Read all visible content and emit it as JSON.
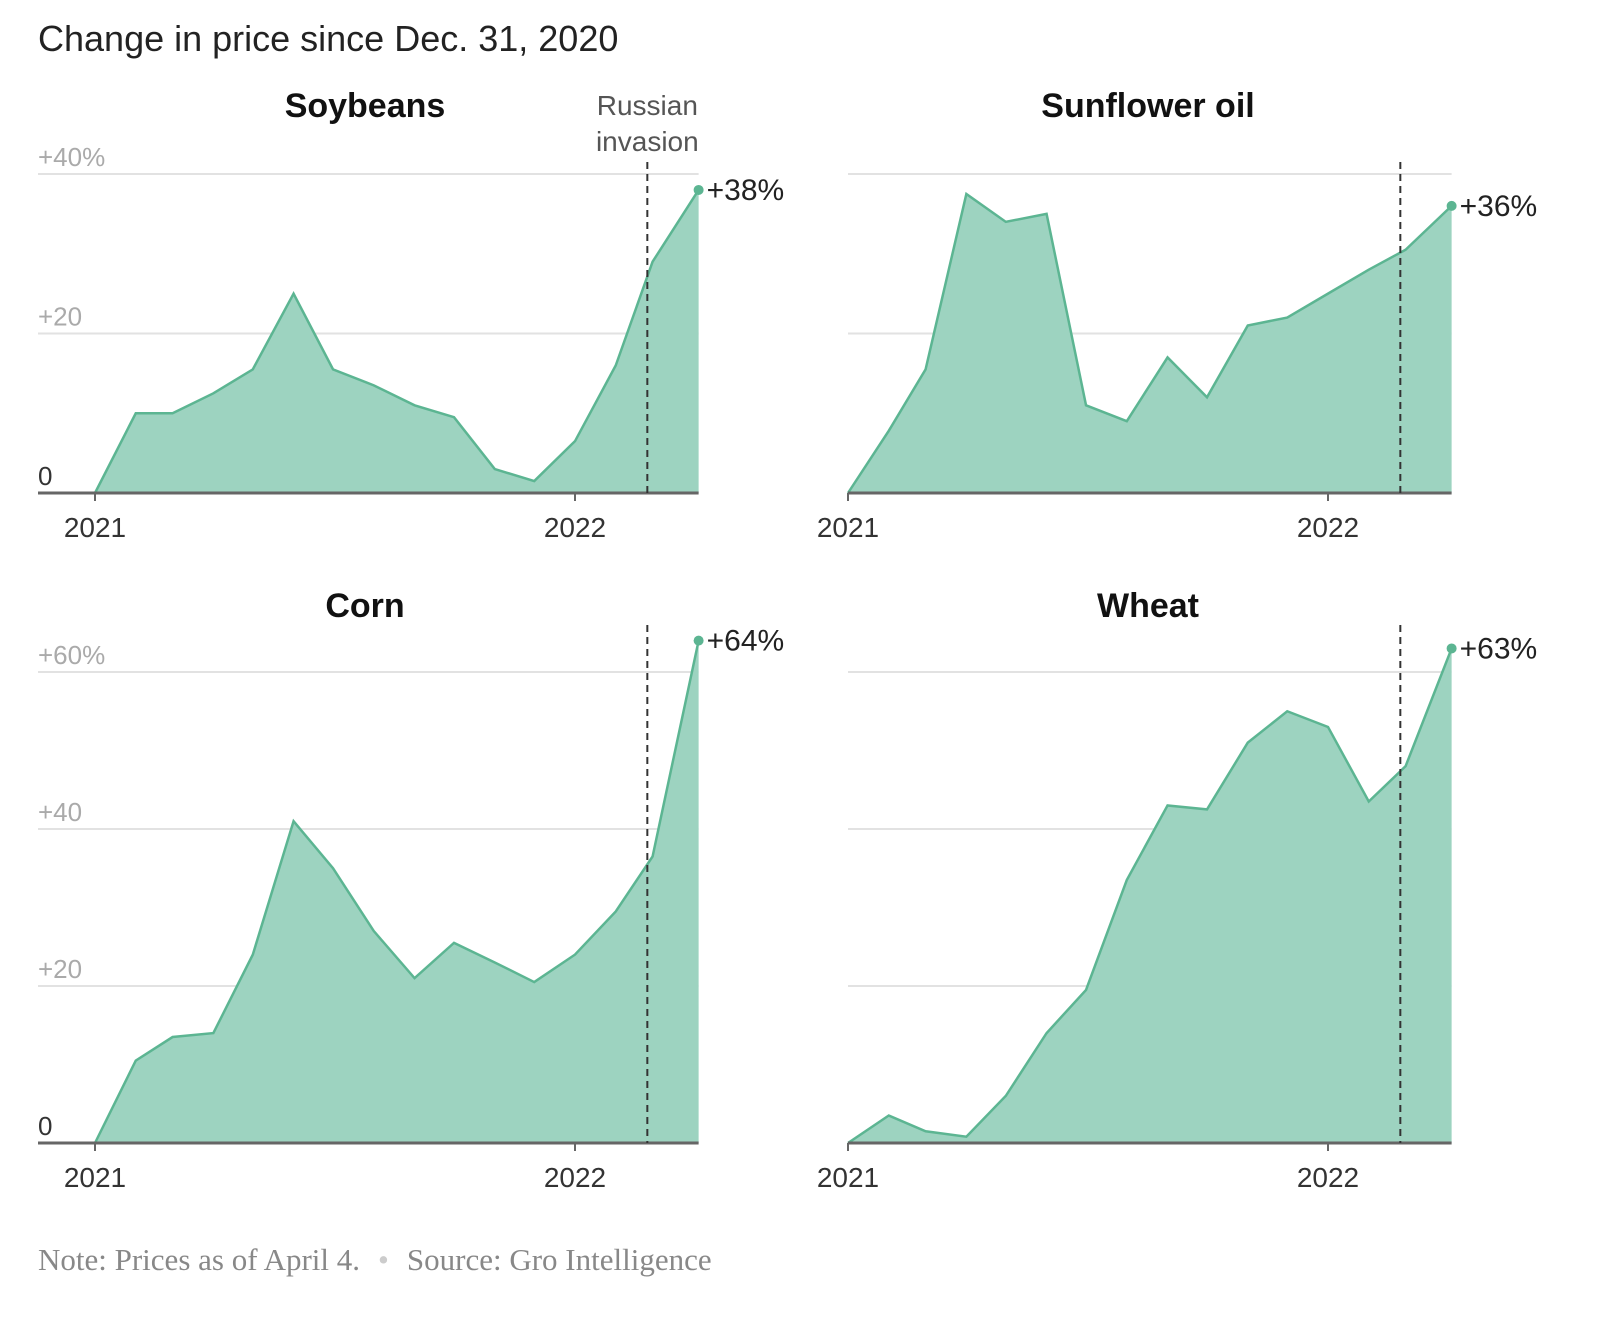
{
  "title": "Change in price since Dec. 31, 2020",
  "note": "Note: Prices as of April 4.",
  "source": "Source: Gro Intelligence",
  "colors": {
    "fill": "#9dd3c0",
    "line": "#5cb592",
    "grid": "#e2e2e2",
    "axis": "#666666"
  },
  "chart_data": [
    {
      "type": "area",
      "title": "Soybeans",
      "ylim": [
        0,
        40
      ],
      "yticks": [
        0,
        20,
        40
      ],
      "ytick_labels": [
        "0",
        "+20",
        "+40%"
      ],
      "xticks": [
        "2021",
        "2022"
      ],
      "annotation": "Russian invasion",
      "end_label": "+38%",
      "x": [
        "2020-12-31",
        "2021-01-31",
        "2021-02-28",
        "2021-03-31",
        "2021-04-30",
        "2021-05-31",
        "2021-06-30",
        "2021-07-31",
        "2021-08-31",
        "2021-09-30",
        "2021-10-31",
        "2021-11-30",
        "2021-12-31",
        "2022-01-31",
        "2022-02-28",
        "2022-04-04"
      ],
      "values": [
        0,
        10,
        10,
        12.5,
        15.5,
        25,
        15.5,
        13.5,
        11,
        9.5,
        3,
        1.5,
        6.5,
        16,
        29,
        38
      ]
    },
    {
      "type": "area",
      "title": "Sunflower oil",
      "ylim": [
        0,
        40
      ],
      "yticks": [
        0,
        20,
        40
      ],
      "ytick_labels": [
        "",
        "",
        ""
      ],
      "xticks": [
        "2021",
        "2022"
      ],
      "annotation": "",
      "end_label": "+36%",
      "x": [
        "2020-12-31",
        "2021-01-31",
        "2021-02-28",
        "2021-03-31",
        "2021-04-30",
        "2021-05-31",
        "2021-06-30",
        "2021-07-31",
        "2021-08-31",
        "2021-09-30",
        "2021-10-31",
        "2021-11-30",
        "2021-12-31",
        "2022-01-31",
        "2022-02-28",
        "2022-04-04"
      ],
      "values": [
        0,
        7.8,
        15.5,
        37.5,
        34,
        35,
        11,
        9,
        17,
        12,
        21,
        22,
        25,
        28,
        30.5,
        36
      ]
    },
    {
      "type": "area",
      "title": "Corn",
      "ylim": [
        0,
        60
      ],
      "yticks": [
        0,
        20,
        40,
        60
      ],
      "ytick_labels": [
        "0",
        "+20",
        "+40",
        "+60%"
      ],
      "xticks": [
        "2021",
        "2022"
      ],
      "annotation": "",
      "end_label": "+64%",
      "x": [
        "2020-12-31",
        "2021-01-31",
        "2021-02-28",
        "2021-03-31",
        "2021-04-30",
        "2021-05-31",
        "2021-06-30",
        "2021-07-31",
        "2021-08-31",
        "2021-09-30",
        "2021-10-31",
        "2021-11-30",
        "2021-12-31",
        "2022-01-31",
        "2022-02-28",
        "2022-04-04"
      ],
      "values": [
        0,
        10.5,
        13.5,
        14,
        24,
        41,
        35,
        27,
        21,
        25.5,
        23,
        20.5,
        24,
        29.5,
        36.5,
        64
      ]
    },
    {
      "type": "area",
      "title": "Wheat",
      "ylim": [
        0,
        60
      ],
      "yticks": [
        0,
        20,
        40,
        60
      ],
      "ytick_labels": [
        "",
        "",
        "",
        ""
      ],
      "xticks": [
        "2021",
        "2022"
      ],
      "annotation": "",
      "end_label": "+63%",
      "x": [
        "2020-12-31",
        "2021-01-31",
        "2021-02-28",
        "2021-03-31",
        "2021-04-30",
        "2021-05-31",
        "2021-06-30",
        "2021-07-31",
        "2021-08-31",
        "2021-09-30",
        "2021-10-31",
        "2021-11-30",
        "2021-12-31",
        "2022-01-31",
        "2022-02-28",
        "2022-04-04"
      ],
      "values": [
        0,
        3.5,
        1.5,
        0.8,
        6,
        14,
        19.5,
        33.5,
        43,
        42.5,
        51,
        55,
        53,
        43.5,
        48,
        63
      ]
    }
  ],
  "invasion_date": "2022-02-24"
}
